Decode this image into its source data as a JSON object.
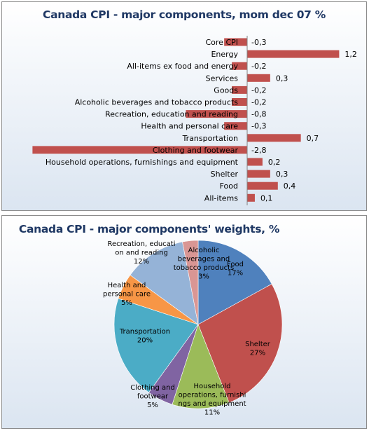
{
  "chart_data": [
    {
      "type": "bar",
      "orientation": "horizontal",
      "title": "Canada CPI - major components, mom dec 07 %",
      "categories": [
        "Core CPI",
        "Energy",
        "All-items ex food and energy",
        "Services",
        "Goods",
        "Alcoholic beverages and tobacco products",
        "Recreation, education and reading",
        "Health and personal care",
        "Transportation",
        "Clothing and footwear",
        "Household operations, furnishings and equipment",
        "Shelter",
        "Food",
        "All-items"
      ],
      "values": [
        -0.3,
        1.2,
        -0.2,
        0.3,
        -0.2,
        -0.2,
        -0.8,
        -0.3,
        0.7,
        -2.8,
        0.2,
        0.3,
        0.4,
        0.1
      ],
      "value_labels": [
        "-0,3",
        "1,2",
        "-0,2",
        "0,3",
        "-0,2",
        "-0,2",
        "-0,8",
        "-0,3",
        "0,7",
        "-2,8",
        "0,2",
        "0,3",
        "0,4",
        "0,1"
      ],
      "bar_color": "#c0504d",
      "grid": false,
      "legend": "none"
    },
    {
      "type": "pie",
      "title": "Canada CPI - major components' weights, %",
      "slices": [
        {
          "label_lines": [
            "Food",
            "17%"
          ],
          "value": 17,
          "color": "#4f81bd"
        },
        {
          "label_lines": [
            "Shelter",
            "27%"
          ],
          "value": 27,
          "color": "#c0504d"
        },
        {
          "label_lines": [
            "Household",
            "operations, furnishi",
            "ngs and equipment",
            "11%"
          ],
          "value": 11,
          "color": "#9bbb59"
        },
        {
          "label_lines": [
            "Clothing and",
            "footwear",
            "5%"
          ],
          "value": 5,
          "color": "#8064a2"
        },
        {
          "label_lines": [
            "Transportation",
            "20%"
          ],
          "value": 20,
          "color": "#4bacc6"
        },
        {
          "label_lines": [
            "Health and",
            "personal care",
            "5%"
          ],
          "value": 5,
          "color": "#f79646"
        },
        {
          "label_lines": [
            "Recreation, educati",
            "on and reading",
            "12%"
          ],
          "value": 12,
          "color": "#95b3d7"
        },
        {
          "label_lines": [
            "Alcoholic",
            "beverages and",
            "tobacco products",
            "3%"
          ],
          "value": 3,
          "color": "#d99694"
        }
      ],
      "start_angle_deg": 0,
      "direction": "clockwise",
      "legend": "none"
    }
  ]
}
